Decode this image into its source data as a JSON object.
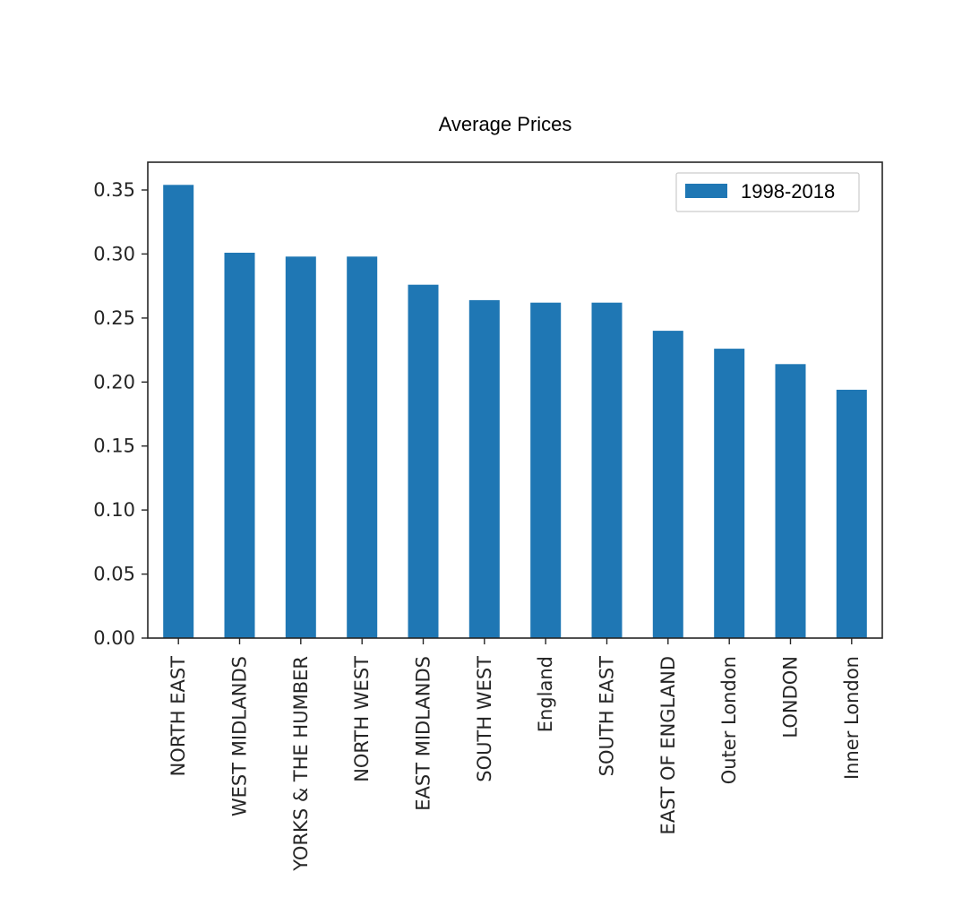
{
  "chart_data": {
    "type": "bar",
    "title": "Average Prices",
    "xlabel": "",
    "ylabel": "",
    "categories": [
      "NORTH EAST",
      "WEST MIDLANDS",
      "YORKS & THE HUMBER",
      "NORTH WEST",
      "EAST MIDLANDS",
      "SOUTH WEST",
      "England",
      "SOUTH EAST",
      "EAST OF ENGLAND",
      "Outer London",
      "LONDON",
      "Inner London"
    ],
    "series": [
      {
        "name": "1998-2018",
        "values": [
          0.354,
          0.301,
          0.298,
          0.298,
          0.276,
          0.264,
          0.262,
          0.262,
          0.24,
          0.226,
          0.214,
          0.194
        ]
      }
    ],
    "ylim": [
      0,
      0.37
    ],
    "yticks": [
      "0.00",
      "0.05",
      "0.10",
      "0.15",
      "0.20",
      "0.25",
      "0.30",
      "0.35"
    ],
    "ytick_values": [
      0,
      0.05,
      0.1,
      0.15,
      0.2,
      0.25,
      0.3,
      0.35
    ],
    "grid": false,
    "legend_position": "top-right",
    "colors": {
      "bar": "#1f77b4",
      "axis": "#262626"
    }
  }
}
